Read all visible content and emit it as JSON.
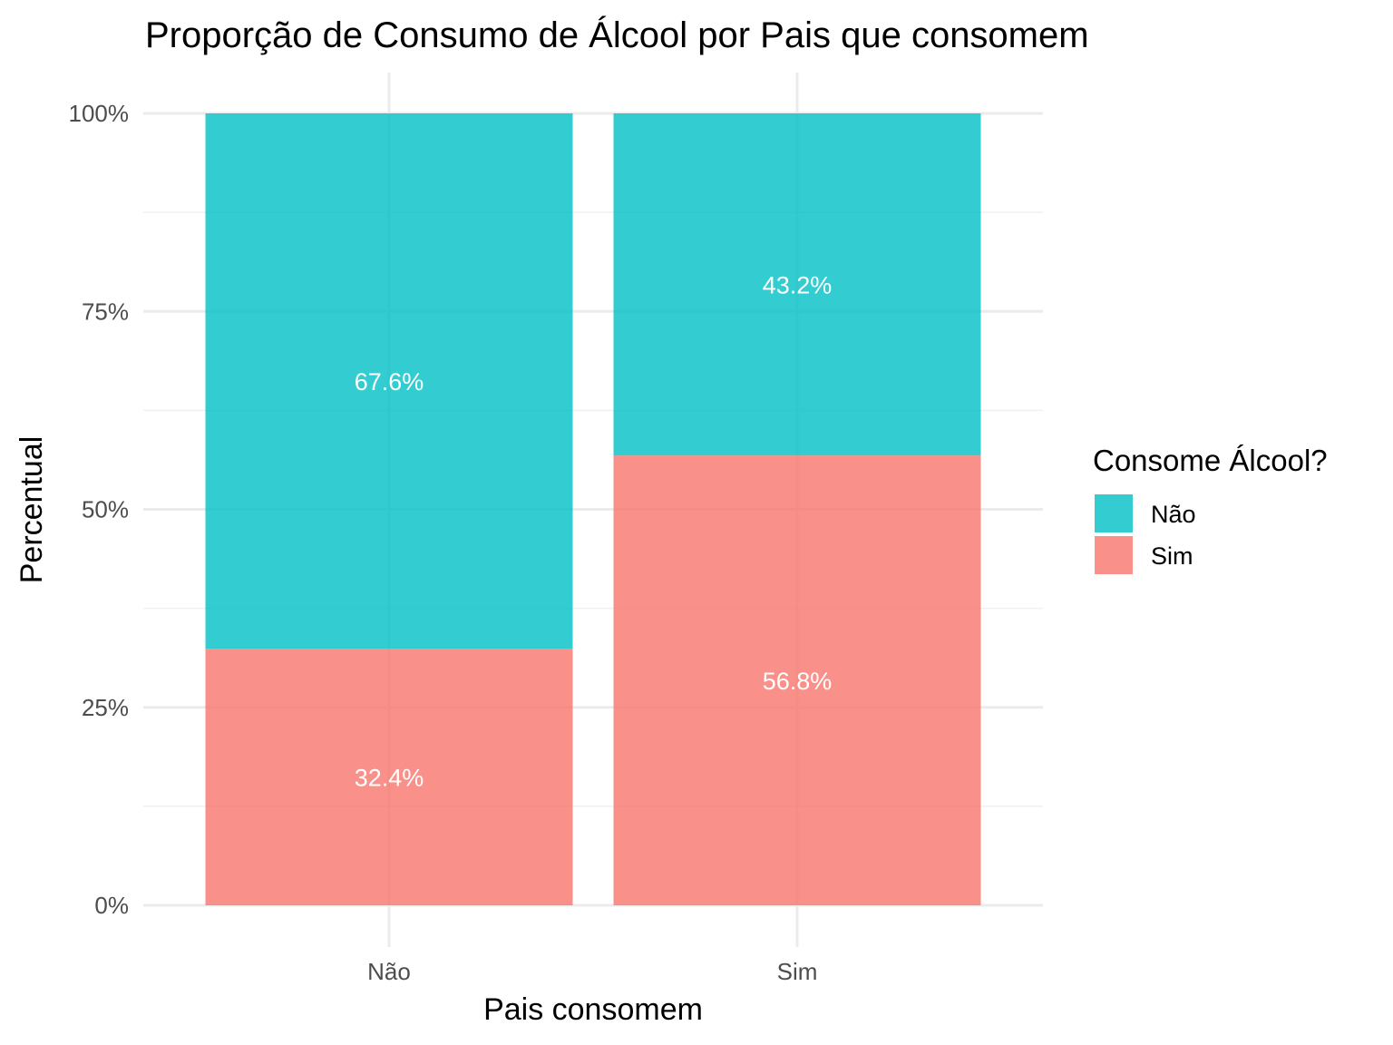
{
  "chart_data": {
    "type": "bar",
    "stacked": true,
    "title": "Proporção de Consumo de Álcool por Pais que consomem",
    "xlabel": "Pais consomem",
    "ylabel": "Percentual",
    "categories": [
      "Não",
      "Sim"
    ],
    "ylim": [
      0,
      100
    ],
    "y_ticks": [
      "0%",
      "25%",
      "50%",
      "75%",
      "100%"
    ],
    "grid": true,
    "legend": {
      "title": "Consome Álcool?",
      "position": "right"
    },
    "series": [
      {
        "name": "Sim",
        "color": "#F8766D",
        "values": [
          32.4,
          56.8
        ],
        "labels": [
          "32.4%",
          "56.8%"
        ]
      },
      {
        "name": "Não",
        "color": "#00BFC4",
        "values": [
          67.6,
          43.2
        ],
        "labels": [
          "67.6%",
          "43.2%"
        ]
      }
    ]
  }
}
